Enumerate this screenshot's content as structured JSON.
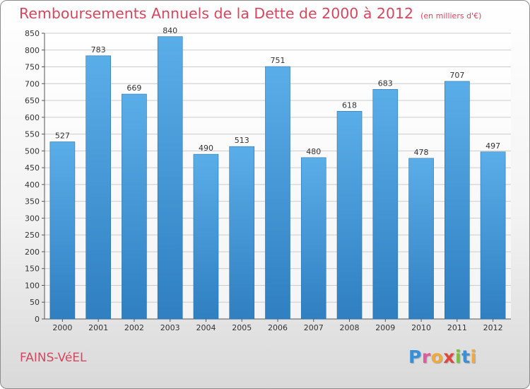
{
  "header": {
    "title": "Remboursements Annuels de la Dette de 2000 à 2012",
    "subtitle": "(en milliers d'€)"
  },
  "footer": {
    "city": "FAINS-VéEL",
    "brand_letters": [
      "P",
      "r",
      "o",
      "x",
      "i",
      "t",
      "i"
    ],
    "brand_colors": [
      "#3a8fd6",
      "#e05a9e",
      "#f2a93b",
      "#e0473e",
      "#7cbf3e",
      "#3a8fd6",
      "#f2a93b"
    ]
  },
  "colors": {
    "title": "#d3485e",
    "bar_top": "#5aaee8",
    "bar_bottom": "#2f7fc1",
    "grid": "#cccccc",
    "axis": "#555555"
  },
  "chart_data": {
    "type": "bar",
    "categories": [
      "2000",
      "2001",
      "2002",
      "2003",
      "2004",
      "2005",
      "2006",
      "2007",
      "2008",
      "2009",
      "2010",
      "2011",
      "2012"
    ],
    "values": [
      527,
      783,
      669,
      840,
      490,
      513,
      751,
      480,
      618,
      683,
      478,
      707,
      497
    ],
    "ylim": [
      0,
      850
    ],
    "ytick_step": 50,
    "grid": true,
    "xlabel": "",
    "ylabel": ""
  }
}
